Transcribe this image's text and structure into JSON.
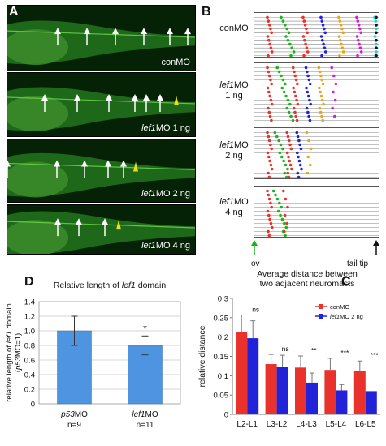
{
  "panel_a": {
    "letter": "A",
    "images": [
      {
        "label": "conMO",
        "arrows": 6,
        "triangle": true
      },
      {
        "label_italic": "lef1",
        "label_rest": "MO 1 ng",
        "arrows": 6,
        "triangle": true
      },
      {
        "label_italic": "lef1",
        "label_rest": "MO 2 ng",
        "arrows": 5,
        "triangle": true
      },
      {
        "label_italic": "lef1",
        "label_rest": "MO 4 ng",
        "arrows": 3,
        "triangle": true
      }
    ]
  },
  "panel_b": {
    "letter": "B",
    "groups": [
      {
        "label": "conMO"
      },
      {
        "label_italic": "lef1",
        "label_rest": "MO",
        "label_dose": "1 ng"
      },
      {
        "label_italic": "lef1",
        "label_rest": "MO",
        "label_dose": "2 ng"
      },
      {
        "label_italic": "lef1",
        "label_rest": "MO",
        "label_dose": "4 ng"
      }
    ],
    "left_marker": "ov",
    "right_marker": "tail tip",
    "left_arrow_color": "#1db31d",
    "right_arrow_color": "#111111"
  },
  "panel_c": {
    "letter": "C",
    "chart_data": {
      "type": "bar",
      "title": "Average distance between two adjacent neuromasts",
      "title_lines": [
        "Average distance between",
        "two adjacent neuromasts"
      ],
      "categories": [
        "L2-L1",
        "L3-L2",
        "L4-L3",
        "L5-L4",
        "L6-L5"
      ],
      "series": [
        {
          "name": "conMO",
          "color": "#e8322b",
          "values": [
            0.212,
            0.13,
            0.121,
            0.115,
            0.113
          ],
          "errors": [
            0.045,
            0.025,
            0.03,
            0.03,
            0.025
          ]
        },
        {
          "name_italic": "lef1",
          "name_rest": "MO 2 ng",
          "color": "#2222d8",
          "values": [
            0.197,
            0.123,
            0.082,
            0.062,
            0.06
          ],
          "errors": [
            0.045,
            0.03,
            0.025,
            0.015,
            0.0
          ]
        }
      ],
      "significance": [
        "ns",
        "ns",
        "**",
        "***",
        "***"
      ],
      "ylabel": "relative distance",
      "ylim": [
        0,
        0.3
      ],
      "yticks": [
        "0",
        "0.05",
        "0.1",
        "0.15",
        "0.2",
        "0.25",
        "0.3"
      ],
      "grid": false,
      "legend": "top-right"
    }
  },
  "panel_d": {
    "letter": "D",
    "chart_data": {
      "type": "bar",
      "title_prefix": "Relative length of ",
      "title_italic": "lef1",
      "title_suffix": " domain",
      "categories_italic": [
        "p53",
        "lef1"
      ],
      "categories_rest": [
        "MO",
        "MO"
      ],
      "n_labels": [
        "n=9",
        "n=11"
      ],
      "values": [
        1.0,
        0.8
      ],
      "errors": [
        0.2,
        0.13
      ],
      "color": "#4f94e0",
      "significance": [
        "",
        "*"
      ],
      "ylabel_line1_prefix": "relative length of ",
      "ylabel_line1_italic": "lef1",
      "ylabel_line1_suffix": " domain",
      "ylabel_line2_prefix": "(",
      "ylabel_line2_italic": "p53",
      "ylabel_line2_suffix": "MO=1)",
      "ylim": [
        0,
        1.4
      ],
      "yticks": [
        "0",
        "0.2",
        "0.4",
        "0.6",
        "0.8",
        "1.0",
        "1.2",
        "1.4"
      ],
      "grid": true
    }
  }
}
